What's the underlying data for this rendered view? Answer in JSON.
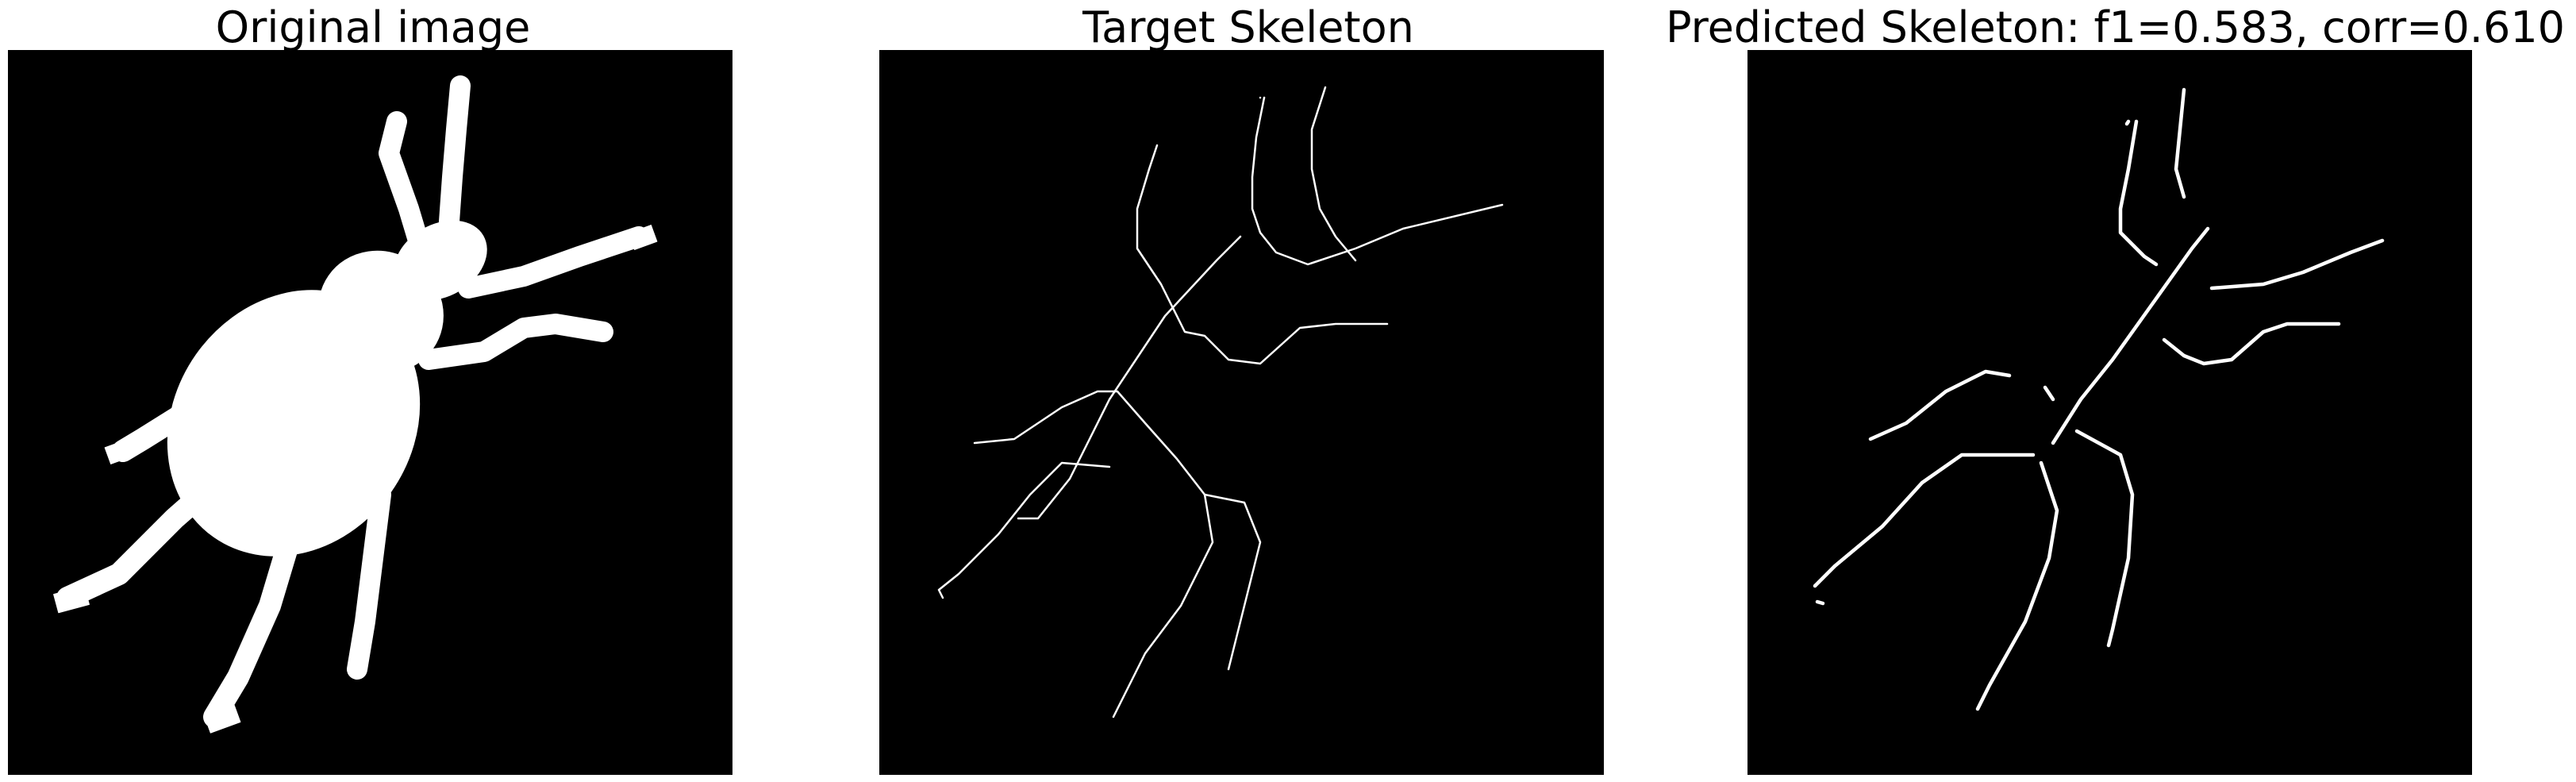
{
  "panels": [
    {
      "title": "Original image"
    },
    {
      "title": "Target Skeleton"
    },
    {
      "title": "Predicted Skeleton: f1=0.583, corr=0.610"
    }
  ],
  "colors": {
    "background": "#000000",
    "foreground": "#ffffff",
    "page": "#ffffff"
  }
}
